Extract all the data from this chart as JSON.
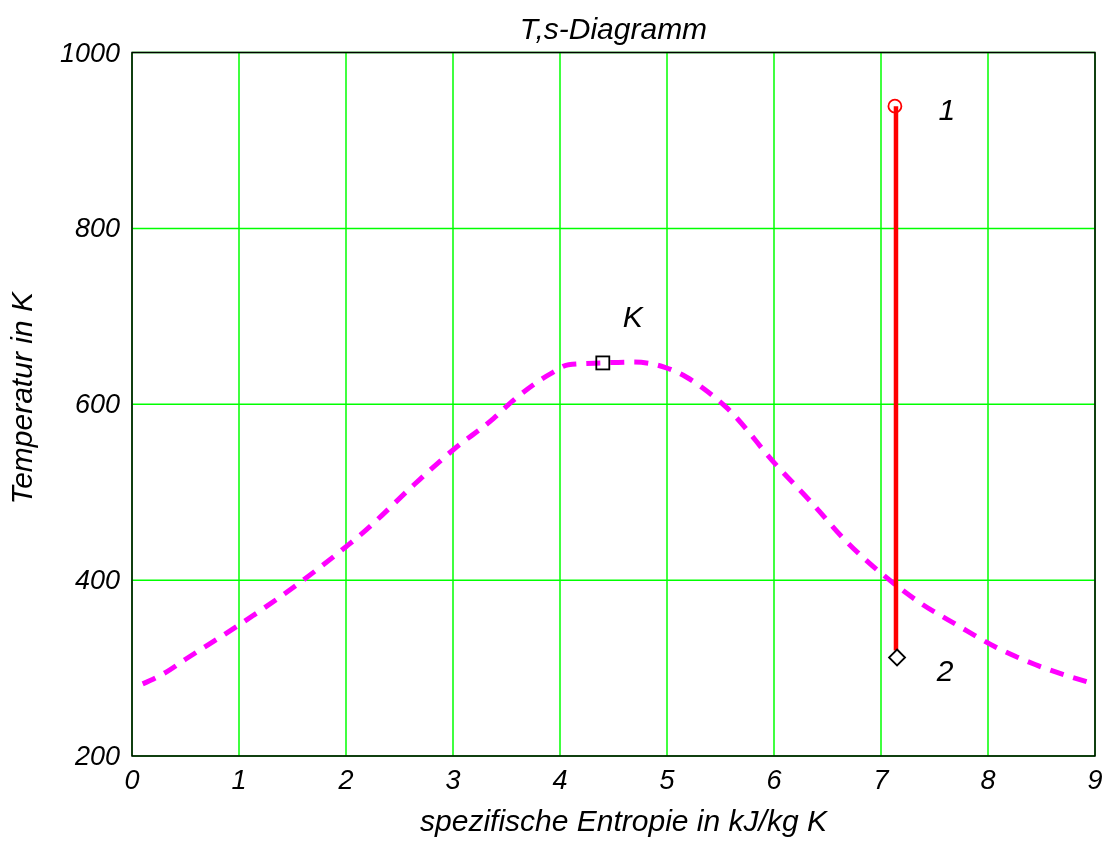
{
  "chart_data": {
    "type": "line",
    "title": "T,s-Diagramm",
    "xlabel": "spezifische Entropie in kJ/kg K",
    "ylabel": "Temperatur in K",
    "xlim": [
      0,
      9
    ],
    "ylim": [
      200,
      1000
    ],
    "xticks": [
      0,
      1,
      2,
      3,
      4,
      5,
      6,
      7,
      8,
      9
    ],
    "yticks": [
      200,
      400,
      600,
      800,
      1000
    ],
    "grid": true,
    "series": [
      {
        "x": [
          0.1,
          0.3,
          0.5,
          1.0,
          1.6,
          2.0,
          2.14,
          2.64,
          3.0,
          3.38,
          3.55,
          3.93,
          4.08,
          4.4,
          4.68,
          4.98,
          5.18,
          5.35,
          5.55,
          6.02,
          6.36,
          6.66,
          7.02,
          7.38,
          7.71,
          8.07,
          8.44,
          8.94
        ],
        "values": [
          282,
          294,
          310,
          349,
          400,
          438,
          452,
          509,
          548,
          584,
          603,
          636,
          645,
          647,
          648,
          642,
          631,
          617,
          597,
          531,
          487,
          446,
          406,
          373,
          349,
          324,
          304,
          284
        ],
        "color": "#ff00ff",
        "line_style": "dashed",
        "marker": "none"
      },
      {
        "x": [
          7.14,
          7.14
        ],
        "values": [
          939,
          320
        ],
        "color": "#ff0000",
        "line_style": "solid",
        "marker": "none"
      },
      {
        "type": "scatter",
        "x": [
          7.13
        ],
        "values": [
          939
        ],
        "color": "#ff0000",
        "marker": "circle"
      },
      {
        "type": "scatter",
        "x": [
          7.15
        ],
        "values": [
          312
        ],
        "color": "#000000",
        "marker": "diamond"
      },
      {
        "type": "scatter",
        "x": [
          4.4
        ],
        "values": [
          647
        ],
        "color": "#000000",
        "marker": "square"
      }
    ],
    "annotations": [
      {
        "text": "1",
        "x": 7.13,
        "y": 939
      },
      {
        "text": "2",
        "x": 7.15,
        "y": 312
      },
      {
        "text": "K",
        "x": 4.4,
        "y": 647
      }
    ]
  }
}
